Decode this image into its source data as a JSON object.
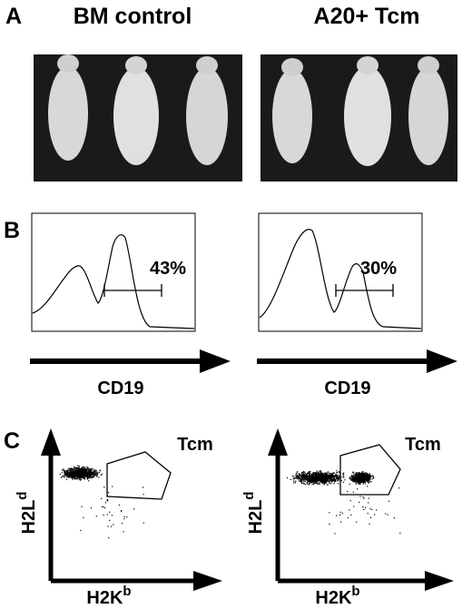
{
  "panel_a": {
    "label": "A",
    "groups": [
      "BM control",
      "A20+ Tcm"
    ]
  },
  "panel_b": {
    "label": "B",
    "plots": [
      {
        "gate": "43%",
        "axis": "CD19"
      },
      {
        "gate": "30%",
        "axis": "CD19"
      }
    ]
  },
  "panel_c": {
    "label": "C",
    "plots": [
      {
        "gate": "Tcm",
        "y_axis": {
          "main": "H2L",
          "sup": "d"
        },
        "x_axis": {
          "main": "H2K",
          "sup": "b"
        }
      },
      {
        "gate": "Tcm",
        "y_axis": {
          "main": "H2L",
          "sup": "d"
        },
        "x_axis": {
          "main": "H2K",
          "sup": "b"
        }
      }
    ]
  }
}
